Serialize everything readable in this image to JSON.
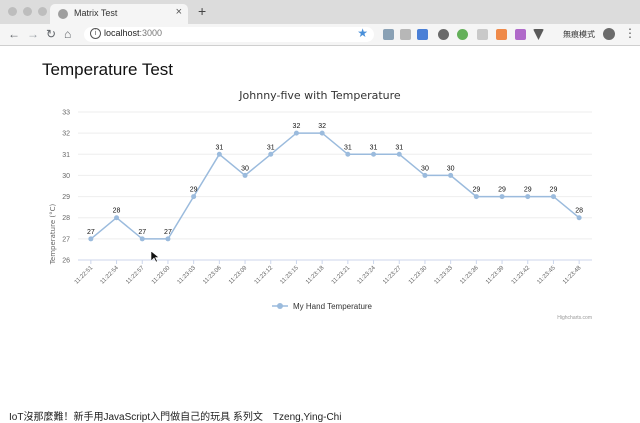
{
  "browser": {
    "tab_title": "Matrix Test",
    "tab_close": "×",
    "new_tab": "+",
    "url_host": "localhost",
    "url_port": ":3000",
    "profile_label": "無痕模式",
    "nav": {
      "back": "←",
      "forward": "→",
      "reload": "↻",
      "home": "⌂"
    },
    "star": "★",
    "menu": "⋮"
  },
  "page": {
    "title": "Temperature Test",
    "footer": "IoT沒那麼難！新手用JavaScript入門做自己的玩具 系列文　Tzeng,Ying-Chi"
  },
  "chart_data": {
    "type": "line",
    "title": "Johnny-five with Temperature",
    "ylabel": "Temperature (°C)",
    "xlabel": "",
    "ylim": [
      26,
      33
    ],
    "yticks": [
      26,
      27,
      28,
      29,
      30,
      31,
      32,
      33
    ],
    "grid": true,
    "legend_position": "bottom-center",
    "credits": "Highcharts.com",
    "series": [
      {
        "name": "My Hand Temperature",
        "color": "#9bbbdd",
        "x": [
          "11:22:51",
          "11:22:54",
          "11:22:57",
          "11:23:00",
          "11:23:03",
          "11:23:06",
          "11:23:09",
          "11:23:12",
          "11:23:15",
          "11:23:18",
          "11:23:21",
          "11:23:24",
          "11:23:27",
          "11:23:30",
          "11:23:33",
          "11:23:36",
          "11:23:39",
          "11:23:42",
          "11:23:45",
          "11:23:48"
        ],
        "values": [
          27,
          28,
          27,
          27,
          29,
          31,
          30,
          31,
          32,
          32,
          31,
          31,
          31,
          30,
          30,
          29,
          29,
          29,
          29,
          28
        ]
      }
    ]
  }
}
